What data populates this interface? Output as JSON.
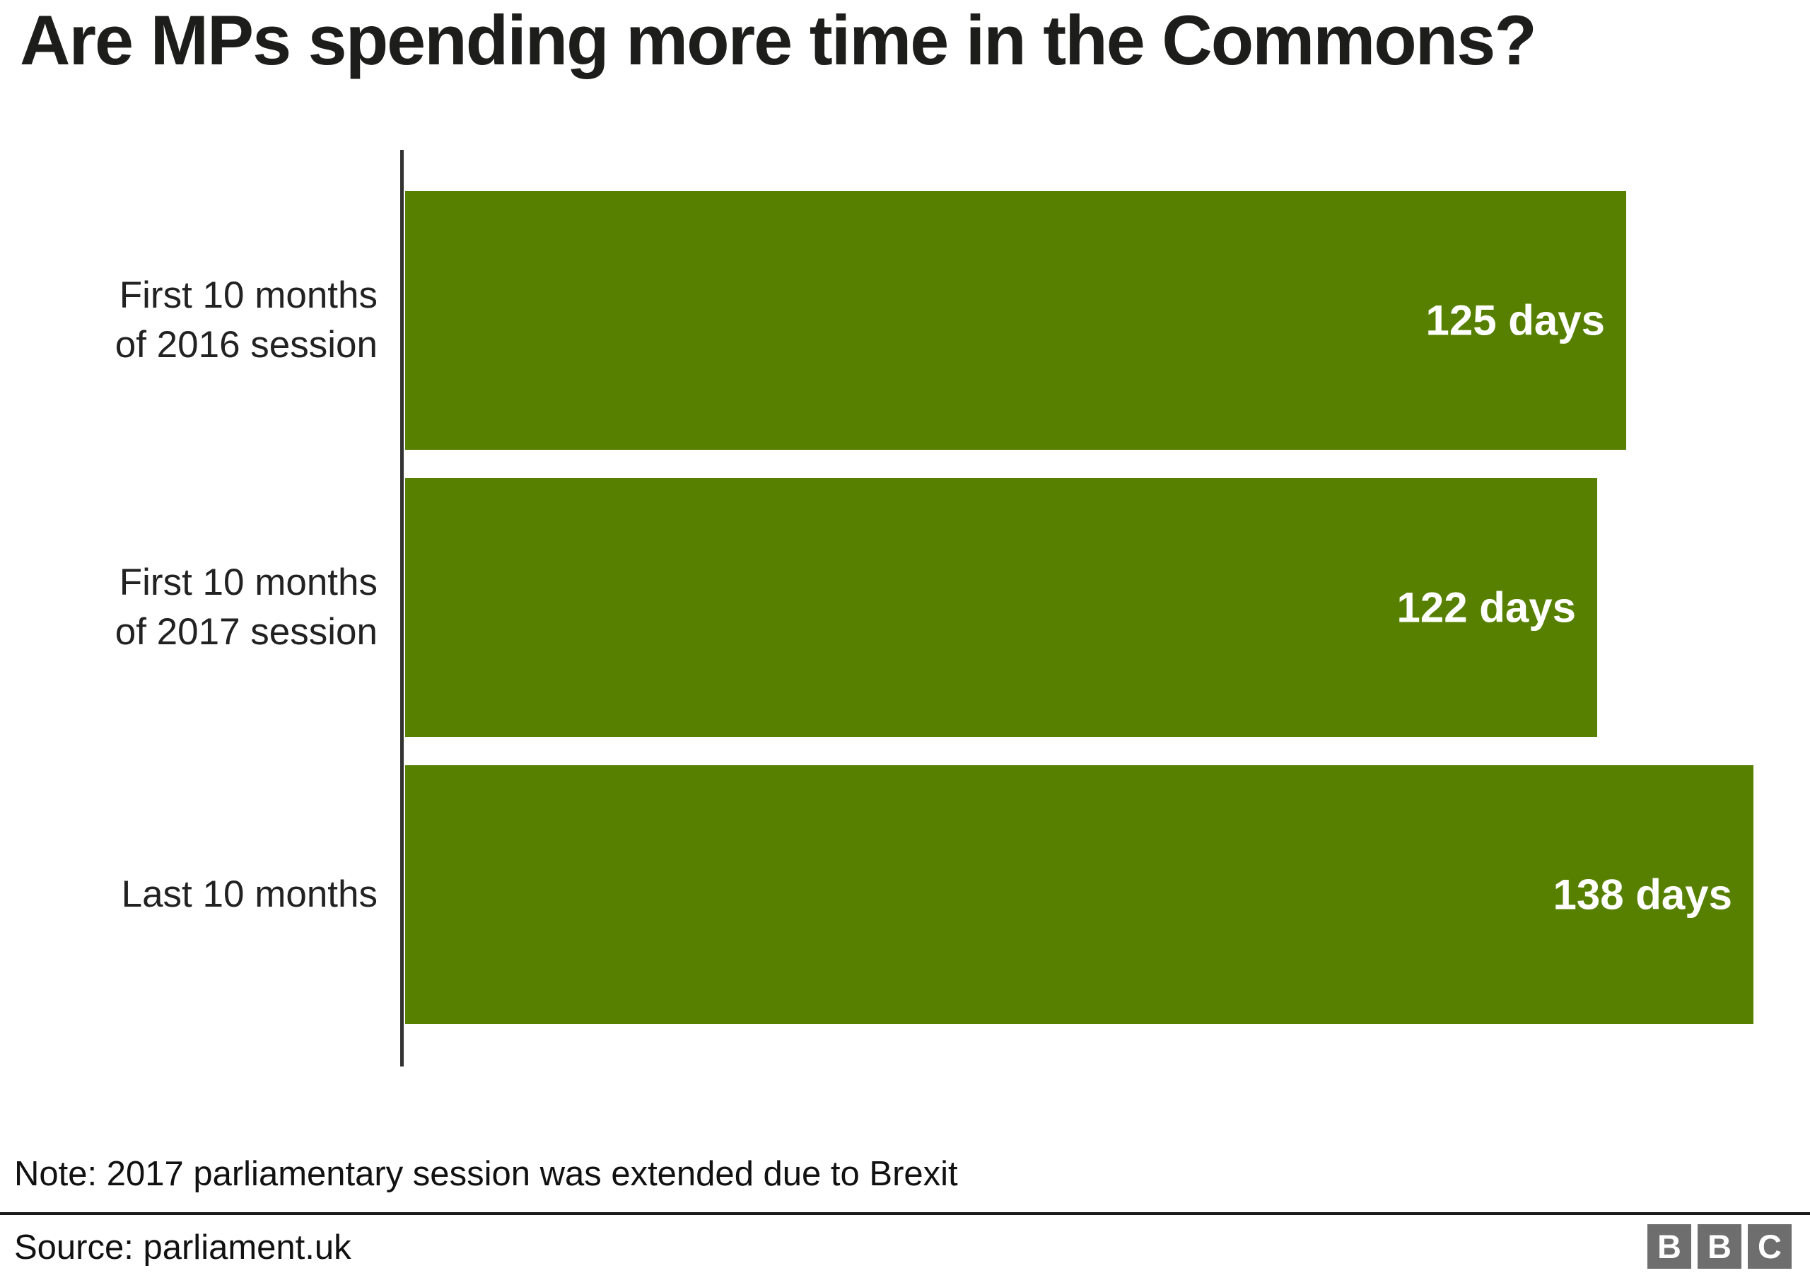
{
  "title": "Are MPs spending more time in the Commons?",
  "note": "Note: 2017 parliamentary session was extended due to Brexit",
  "source": "Source: parliament.uk",
  "logo": {
    "letters": [
      "B",
      "B",
      "C"
    ]
  },
  "colors": {
    "bar": "#578000",
    "value_label": "#ffffff",
    "title": "#1d1d1b",
    "label_text": "#222222",
    "axis": "#333333",
    "logo_bg": "#6e6e6e"
  },
  "chart_data": {
    "type": "bar",
    "orientation": "horizontal",
    "title": "Are MPs spending more time in the Commons?",
    "categories": [
      "First 10 months\nof 2016 session",
      "First 10 months\nof 2017 session",
      "Last 10 months"
    ],
    "values": [
      125,
      122,
      138
    ],
    "value_labels": [
      "125 days",
      "122 days",
      "138 days"
    ],
    "unit": "days",
    "xlabel": "",
    "ylabel": "",
    "xlim": [
      0,
      144
    ],
    "grid": false,
    "legend": false,
    "note": "Note: 2017 parliamentary session was extended due to Brexit",
    "source": "parliament.uk"
  }
}
